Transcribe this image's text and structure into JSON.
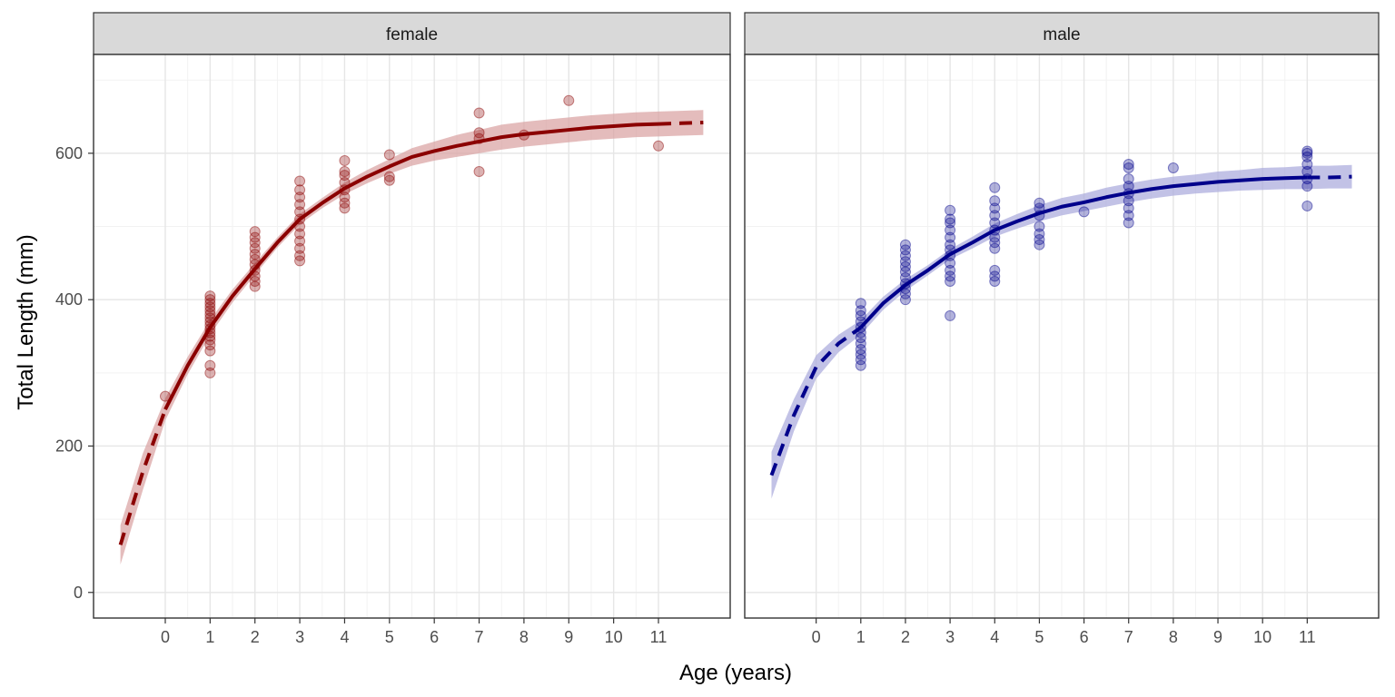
{
  "chart_data": {
    "type": "scatter",
    "xlabel": "Age (years)",
    "ylabel": "Total Length (mm)",
    "xlim": [
      -1.6,
      12.6
    ],
    "ylim": [
      -35,
      735
    ],
    "x_ticks": [
      0,
      1,
      2,
      3,
      4,
      5,
      6,
      7,
      8,
      9,
      10,
      11
    ],
    "y_ticks": [
      0,
      200,
      400,
      600
    ],
    "grid": true,
    "legend": "none",
    "panels": [
      {
        "name": "female",
        "color": "#8B0000",
        "fill_color": "#D9A0A0",
        "points": [
          [
            0,
            268
          ],
          [
            1,
            300
          ],
          [
            1,
            310
          ],
          [
            1,
            330
          ],
          [
            1,
            338
          ],
          [
            1,
            345
          ],
          [
            1,
            350
          ],
          [
            1,
            355
          ],
          [
            1,
            360
          ],
          [
            1,
            365
          ],
          [
            1,
            370
          ],
          [
            1,
            375
          ],
          [
            1,
            380
          ],
          [
            1,
            385
          ],
          [
            1,
            390
          ],
          [
            1,
            395
          ],
          [
            1,
            400
          ],
          [
            1,
            405
          ],
          [
            2,
            418
          ],
          [
            2,
            425
          ],
          [
            2,
            432
          ],
          [
            2,
            440
          ],
          [
            2,
            448
          ],
          [
            2,
            455
          ],
          [
            2,
            462
          ],
          [
            2,
            470
          ],
          [
            2,
            478
          ],
          [
            2,
            485
          ],
          [
            2,
            493
          ],
          [
            3,
            453
          ],
          [
            3,
            460
          ],
          [
            3,
            470
          ],
          [
            3,
            480
          ],
          [
            3,
            490
          ],
          [
            3,
            500
          ],
          [
            3,
            510
          ],
          [
            3,
            520
          ],
          [
            3,
            530
          ],
          [
            3,
            540
          ],
          [
            3,
            550
          ],
          [
            3,
            562
          ],
          [
            4,
            525
          ],
          [
            4,
            532
          ],
          [
            4,
            540
          ],
          [
            4,
            550
          ],
          [
            4,
            560
          ],
          [
            4,
            570
          ],
          [
            4,
            575
          ],
          [
            4,
            590
          ],
          [
            5,
            563
          ],
          [
            5,
            568
          ],
          [
            5,
            598
          ],
          [
            7,
            575
          ],
          [
            7,
            620
          ],
          [
            7,
            628
          ],
          [
            7,
            655
          ],
          [
            8,
            625
          ],
          [
            9,
            672
          ],
          [
            11,
            610
          ]
        ],
        "fit": {
          "observed_range": [
            0.0,
            11.0
          ],
          "x": [
            -1.0,
            -0.5,
            0.0,
            0.5,
            1.0,
            1.5,
            2.0,
            2.5,
            3.0,
            3.5,
            4.0,
            4.5,
            5.0,
            5.5,
            6.0,
            6.5,
            7.0,
            7.5,
            8.0,
            8.5,
            9.0,
            9.5,
            10.0,
            10.5,
            11.0,
            11.5,
            12.0
          ],
          "y": [
            65,
            165,
            250,
            310,
            362,
            405,
            442,
            478,
            510,
            532,
            552,
            568,
            582,
            595,
            603,
            610,
            616,
            622,
            626,
            629,
            632,
            635,
            637,
            639,
            640,
            641,
            642
          ],
          "lower": [
            38,
            140,
            235,
            298,
            352,
            396,
            434,
            471,
            503,
            525,
            544,
            559,
            572,
            583,
            590,
            595,
            600,
            605,
            609,
            612,
            615,
            618,
            620,
            622,
            623,
            624,
            625
          ],
          "upper": [
            92,
            190,
            265,
            322,
            372,
            414,
            450,
            485,
            517,
            539,
            560,
            577,
            592,
            607,
            616,
            625,
            632,
            639,
            643,
            646,
            649,
            652,
            654,
            656,
            657,
            658,
            659
          ]
        }
      },
      {
        "name": "male",
        "color": "#00008B",
        "fill_color": "#A8A8DC",
        "points": [
          [
            1,
            310
          ],
          [
            1,
            318
          ],
          [
            1,
            325
          ],
          [
            1,
            332
          ],
          [
            1,
            340
          ],
          [
            1,
            348
          ],
          [
            1,
            355
          ],
          [
            1,
            362
          ],
          [
            1,
            370
          ],
          [
            1,
            378
          ],
          [
            1,
            385
          ],
          [
            1,
            395
          ],
          [
            2,
            400
          ],
          [
            2,
            408
          ],
          [
            2,
            415
          ],
          [
            2,
            422
          ],
          [
            2,
            430
          ],
          [
            2,
            438
          ],
          [
            2,
            445
          ],
          [
            2,
            452
          ],
          [
            2,
            460
          ],
          [
            2,
            468
          ],
          [
            2,
            475
          ],
          [
            3,
            378
          ],
          [
            3,
            425
          ],
          [
            3,
            432
          ],
          [
            3,
            440
          ],
          [
            3,
            450
          ],
          [
            3,
            460
          ],
          [
            3,
            468
          ],
          [
            3,
            475
          ],
          [
            3,
            485
          ],
          [
            3,
            495
          ],
          [
            3,
            505
          ],
          [
            3,
            510
          ],
          [
            3,
            522
          ],
          [
            4,
            425
          ],
          [
            4,
            432
          ],
          [
            4,
            440
          ],
          [
            4,
            470
          ],
          [
            4,
            478
          ],
          [
            4,
            485
          ],
          [
            4,
            495
          ],
          [
            4,
            505
          ],
          [
            4,
            515
          ],
          [
            4,
            525
          ],
          [
            4,
            535
          ],
          [
            4,
            553
          ],
          [
            5,
            475
          ],
          [
            5,
            482
          ],
          [
            5,
            490
          ],
          [
            5,
            500
          ],
          [
            5,
            515
          ],
          [
            5,
            525
          ],
          [
            5,
            532
          ],
          [
            6,
            520
          ],
          [
            7,
            505
          ],
          [
            7,
            515
          ],
          [
            7,
            525
          ],
          [
            7,
            535
          ],
          [
            7,
            545
          ],
          [
            7,
            555
          ],
          [
            7,
            565
          ],
          [
            7,
            580
          ],
          [
            7,
            585
          ],
          [
            8,
            580
          ],
          [
            11,
            528
          ],
          [
            11,
            555
          ],
          [
            11,
            565
          ],
          [
            11,
            575
          ],
          [
            11,
            585
          ],
          [
            11,
            595
          ],
          [
            11,
            600
          ],
          [
            11,
            603
          ]
        ],
        "fit": {
          "observed_range": [
            1.0,
            11.0
          ],
          "x": [
            -1.0,
            -0.5,
            0.0,
            0.5,
            1.0,
            1.5,
            2.0,
            2.5,
            3.0,
            3.5,
            4.0,
            4.5,
            5.0,
            5.5,
            6.0,
            6.5,
            7.0,
            7.5,
            8.0,
            8.5,
            9.0,
            9.5,
            10.0,
            10.5,
            11.0,
            11.5,
            12.0
          ],
          "y": [
            160,
            242,
            308,
            340,
            362,
            395,
            420,
            440,
            462,
            478,
            495,
            507,
            518,
            527,
            533,
            540,
            546,
            551,
            555,
            558,
            561,
            563,
            565,
            566,
            567,
            567,
            568
          ],
          "lower": [
            128,
            220,
            292,
            328,
            352,
            386,
            412,
            433,
            455,
            470,
            486,
            497,
            507,
            515,
            521,
            527,
            533,
            538,
            542,
            545,
            547,
            549,
            550,
            551,
            551,
            552,
            552
          ],
          "upper": [
            192,
            264,
            324,
            352,
            372,
            404,
            428,
            447,
            469,
            486,
            504,
            517,
            529,
            539,
            545,
            553,
            559,
            564,
            568,
            571,
            575,
            577,
            580,
            581,
            583,
            583,
            584
          ]
        }
      }
    ]
  }
}
